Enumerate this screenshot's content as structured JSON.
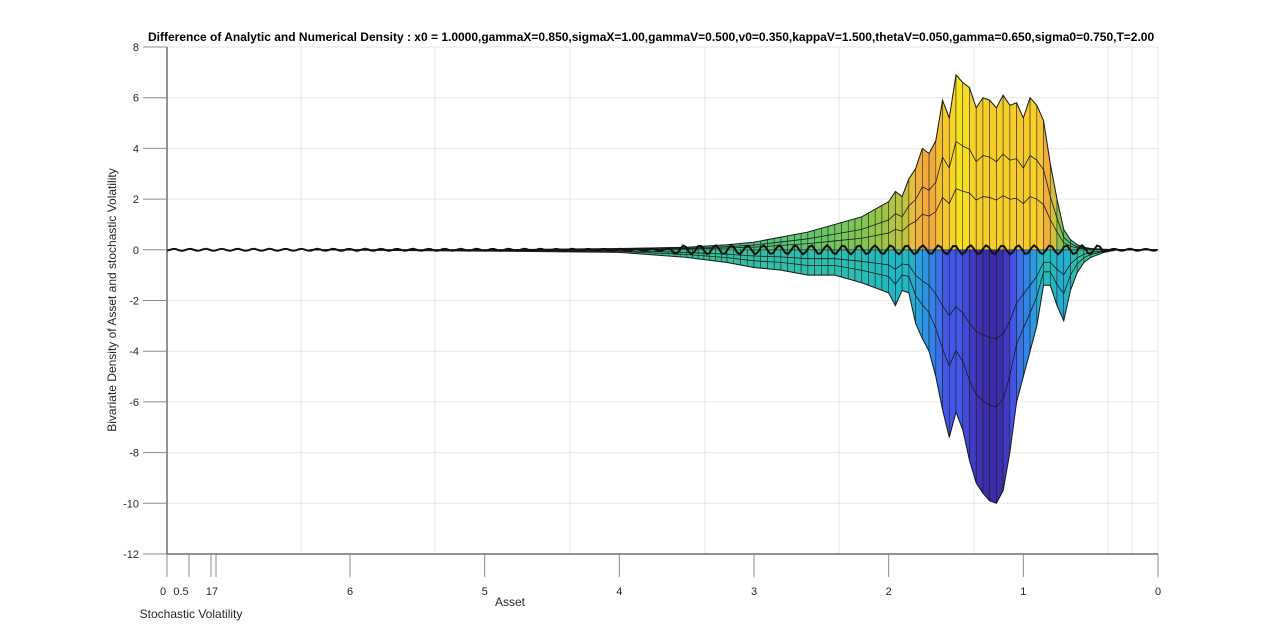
{
  "chart_data": {
    "type": "surface-3d",
    "title": "Difference of Analytic and Numerical Density  : x0 = 1.0000,gammaX=0.850,sigmaX=1.00,gammaV=0.500,v0=0.350,kappaV=1.500,thetaV=0.050,gamma=0.650,sigma0=0.750,T=2.00",
    "zlabel": "Bivariate Density of Asset and stochastic Volatility",
    "xlabel": "Asset",
    "ylabel": "Stochastic Volatility",
    "zlim": [
      -12,
      8
    ],
    "z_ticks": [
      "8",
      "6",
      "4",
      "2",
      "0",
      "-2",
      "-4",
      "-6",
      "-8",
      "-10",
      "-12"
    ],
    "asset_ticks": [
      "6",
      "5",
      "4",
      "3",
      "2",
      "1",
      "0"
    ],
    "asset_range": [
      0,
      6.3
    ],
    "volatility_ticks": [
      "0",
      "0.5",
      "17"
    ],
    "grid": true,
    "view": "side view (volatility axis nearly collapsed)",
    "colormap": "parula",
    "upper_envelope": {
      "asset": [
        6.3,
        5.0,
        4.0,
        3.5,
        3.2,
        3.0,
        2.8,
        2.6,
        2.4,
        2.2,
        2.1,
        2.0,
        1.95,
        1.9,
        1.85,
        1.8,
        1.75,
        1.7,
        1.65,
        1.6,
        1.55,
        1.5,
        1.45,
        1.4,
        1.35,
        1.3,
        1.25,
        1.2,
        1.15,
        1.1,
        1.05,
        1.0,
        0.95,
        0.9,
        0.85,
        0.8,
        0.75,
        0.7,
        0.65,
        0.6,
        0.55,
        0.5,
        0.4,
        0.3,
        0.2,
        0.1,
        0.0
      ],
      "value": [
        0.0,
        0.0,
        0.05,
        0.1,
        0.2,
        0.3,
        0.5,
        0.7,
        1.0,
        1.3,
        1.6,
        1.9,
        2.3,
        2.1,
        2.8,
        3.2,
        4.0,
        3.8,
        4.3,
        5.9,
        5.2,
        6.9,
        6.6,
        6.4,
        5.6,
        6.0,
        5.9,
        5.6,
        6.1,
        5.7,
        5.8,
        5.2,
        6.0,
        5.7,
        5.1,
        3.4,
        2.0,
        0.8,
        0.4,
        0.2,
        0.1,
        0.05,
        0.02,
        0.0,
        0.0,
        0.0,
        0.0
      ]
    },
    "lower_envelope": {
      "asset": [
        6.3,
        5.0,
        4.0,
        3.5,
        3.2,
        3.0,
        2.8,
        2.6,
        2.4,
        2.2,
        2.1,
        2.0,
        1.95,
        1.9,
        1.85,
        1.8,
        1.75,
        1.7,
        1.65,
        1.6,
        1.55,
        1.5,
        1.45,
        1.4,
        1.35,
        1.3,
        1.25,
        1.2,
        1.15,
        1.1,
        1.05,
        1.0,
        0.95,
        0.9,
        0.85,
        0.8,
        0.75,
        0.7,
        0.65,
        0.6,
        0.55,
        0.5,
        0.4,
        0.3,
        0.2,
        0.1,
        0.0
      ],
      "value": [
        0.0,
        -0.05,
        -0.1,
        -0.3,
        -0.5,
        -0.7,
        -0.8,
        -1.0,
        -1.0,
        -1.3,
        -1.5,
        -1.7,
        -2.2,
        -1.6,
        -1.7,
        -2.9,
        -3.5,
        -4.0,
        -5.0,
        -6.3,
        -7.4,
        -6.4,
        -7.1,
        -8.3,
        -9.2,
        -9.6,
        -9.9,
        -10.0,
        -9.5,
        -8.0,
        -6.0,
        -5.0,
        -4.0,
        -3.0,
        -1.4,
        -1.4,
        -2.2,
        -2.8,
        -1.6,
        -0.9,
        -0.5,
        -0.3,
        -0.1,
        0.0,
        0.0,
        0.0,
        0.0
      ]
    }
  }
}
